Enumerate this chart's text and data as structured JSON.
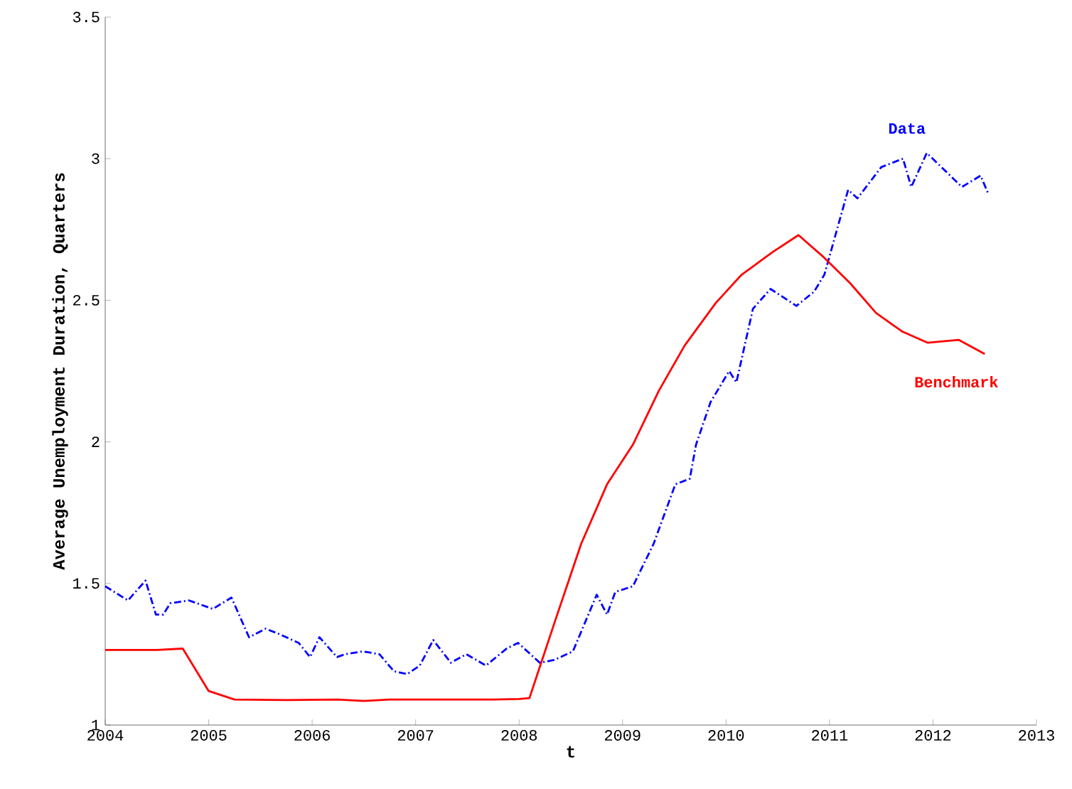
{
  "chart_data": {
    "type": "line",
    "xlabel": "t",
    "ylabel": "Average Unemployment Duration, Quarters",
    "xlim": [
      2004,
      2013
    ],
    "ylim": [
      1,
      3.5
    ],
    "xticks": [
      2004,
      2005,
      2006,
      2007,
      2008,
      2009,
      2010,
      2011,
      2012,
      2013
    ],
    "yticks": [
      1,
      1.5,
      2,
      2.5,
      3,
      3.5
    ],
    "grid": false,
    "legend": false,
    "marker": "none",
    "series": [
      {
        "name": "Data",
        "color": "#0000ff",
        "line_style": "dashed",
        "x": [
          2004.0,
          2004.22,
          2004.39,
          2004.49,
          2004.56,
          2004.63,
          2004.81,
          2005.04,
          2005.22,
          2005.39,
          2005.55,
          2005.69,
          2005.87,
          2005.98,
          2006.07,
          2006.24,
          2006.32,
          2006.49,
          2006.65,
          2006.79,
          2006.92,
          2007.04,
          2007.17,
          2007.34,
          2007.49,
          2007.68,
          2007.88,
          2007.99,
          2008.2,
          2008.34,
          2008.52,
          2008.75,
          2008.85,
          2008.93,
          2009.1,
          2009.3,
          2009.51,
          2009.65,
          2009.71,
          2009.85,
          2010.03,
          2010.1,
          2010.26,
          2010.43,
          2010.68,
          2010.85,
          2010.95,
          2011.18,
          2011.27,
          2011.5,
          2011.71,
          2011.79,
          2011.94,
          2012.28,
          2012.46,
          2012.53
        ],
        "values": [
          1.49,
          1.44,
          1.51,
          1.39,
          1.39,
          1.43,
          1.44,
          1.41,
          1.45,
          1.31,
          1.34,
          1.32,
          1.29,
          1.24,
          1.31,
          1.24,
          1.25,
          1.26,
          1.25,
          1.19,
          1.18,
          1.21,
          1.3,
          1.22,
          1.25,
          1.21,
          1.27,
          1.29,
          1.22,
          1.23,
          1.26,
          1.46,
          1.39,
          1.47,
          1.49,
          1.64,
          1.85,
          1.87,
          1.99,
          2.14,
          2.25,
          2.21,
          2.47,
          2.54,
          2.48,
          2.53,
          2.59,
          2.89,
          2.86,
          2.97,
          3.0,
          2.9,
          3.02,
          2.9,
          2.94,
          2.88
        ]
      },
      {
        "name": "Benchmark",
        "color": "#ff0000",
        "line_style": "solid",
        "x": [
          2004.0,
          2004.5,
          2004.75,
          2005.0,
          2005.25,
          2005.75,
          2006.25,
          2006.5,
          2006.75,
          2007.25,
          2007.75,
          2008.0,
          2008.1,
          2008.35,
          2008.6,
          2008.85,
          2009.1,
          2009.35,
          2009.6,
          2009.9,
          2010.15,
          2010.45,
          2010.7,
          2010.95,
          2011.2,
          2011.45,
          2011.7,
          2011.95,
          2012.25,
          2012.5
        ],
        "values": [
          1.265,
          1.265,
          1.27,
          1.12,
          1.09,
          1.088,
          1.09,
          1.085,
          1.09,
          1.09,
          1.09,
          1.092,
          1.095,
          1.37,
          1.64,
          1.85,
          1.99,
          2.18,
          2.34,
          2.49,
          2.59,
          2.67,
          2.73,
          2.65,
          2.56,
          2.455,
          2.39,
          2.35,
          2.36,
          2.31
        ]
      }
    ]
  }
}
